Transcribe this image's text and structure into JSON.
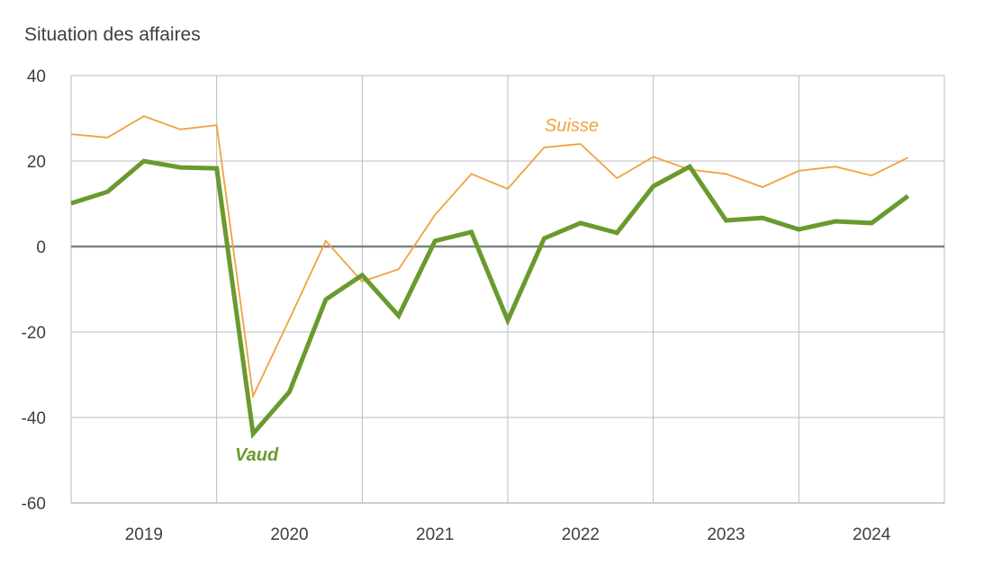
{
  "chart_data": {
    "type": "line",
    "title": "Situation des affaires",
    "xlabel": "",
    "ylabel": "",
    "ylim": [
      -60,
      40
    ],
    "yticks": [
      40,
      20,
      0,
      -20,
      -40,
      -60
    ],
    "ytick_labels": [
      "40",
      "20",
      "0",
      "-20",
      "-40",
      "-60"
    ],
    "categories": [
      "2019",
      "2020",
      "2021",
      "2022",
      "2023",
      "2024"
    ],
    "points_per_category": 4,
    "grid": true,
    "x": [
      "2019-Q1",
      "2019-Q2",
      "2019-Q3",
      "2019-Q4",
      "2020-Q1",
      "2020-Q2",
      "2020-Q3",
      "2020-Q4",
      "2021-Q1",
      "2021-Q2",
      "2021-Q3",
      "2021-Q4",
      "2022-Q1",
      "2022-Q2",
      "2022-Q3",
      "2022-Q4",
      "2023-Q1",
      "2023-Q2",
      "2023-Q3",
      "2023-Q4",
      "2024-Q1",
      "2024-Q2",
      "2024-Q3",
      "2024-Q4"
    ],
    "series": [
      {
        "name": "Suisse",
        "label": "Suisse",
        "color": "#f0a23c",
        "values": [
          26.3,
          25.5,
          30.5,
          27.4,
          28.4,
          -35.0,
          -17.0,
          1.3,
          -8.2,
          -5.3,
          7.4,
          17.0,
          13.5,
          23.2,
          24.0,
          16.0,
          21.0,
          18.0,
          17.0,
          13.9,
          17.7,
          18.7,
          16.6,
          20.8
        ]
      },
      {
        "name": "Vaud",
        "label": "Vaud",
        "color": "#6a9a2e",
        "values": [
          10.1,
          12.8,
          20.0,
          18.5,
          18.3,
          -43.8,
          -34.0,
          -12.4,
          -6.7,
          -16.2,
          1.3,
          3.4,
          -17.3,
          1.9,
          5.5,
          3.2,
          14.1,
          18.7,
          6.1,
          6.7,
          4.0,
          5.9,
          5.5,
          11.8
        ]
      }
    ],
    "colors": {
      "grid": "#b8bcbf",
      "zero_line": "#7d8285",
      "frame": "#b8bcbf",
      "text": "#3b4045"
    }
  }
}
